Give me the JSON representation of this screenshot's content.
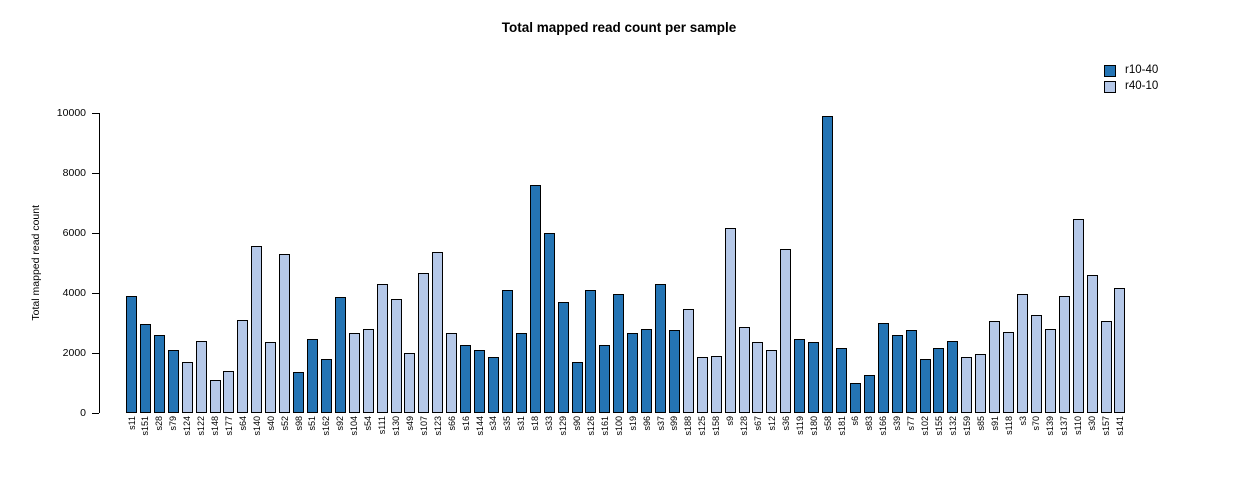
{
  "title": "Total mapped read count per sample",
  "y_axis": {
    "label": "Total mapped read count"
  },
  "chart_data": {
    "type": "bar",
    "title": "Total mapped read count per sample",
    "xlabel": "",
    "ylabel": "Total mapped read count",
    "ylim": [
      0,
      10000
    ],
    "yticks": [
      0,
      2000,
      4000,
      6000,
      8000,
      10000
    ],
    "grid": false,
    "legend_position": "top-right",
    "groups": [
      {
        "name": "r10-40",
        "color": "#2474b4"
      },
      {
        "name": "r40-10",
        "color": "#b5c8e8"
      }
    ],
    "bars": [
      {
        "sample": "s11",
        "value": 3900,
        "group": "r10-40"
      },
      {
        "sample": "s151",
        "value": 2950,
        "group": "r10-40"
      },
      {
        "sample": "s28",
        "value": 2600,
        "group": "r10-40"
      },
      {
        "sample": "s79",
        "value": 2100,
        "group": "r10-40"
      },
      {
        "sample": "s124",
        "value": 1700,
        "group": "r40-10"
      },
      {
        "sample": "s122",
        "value": 2400,
        "group": "r40-10"
      },
      {
        "sample": "s148",
        "value": 1100,
        "group": "r40-10"
      },
      {
        "sample": "s177",
        "value": 1400,
        "group": "r40-10"
      },
      {
        "sample": "s64",
        "value": 3100,
        "group": "r40-10"
      },
      {
        "sample": "s140",
        "value": 5550,
        "group": "r40-10"
      },
      {
        "sample": "s40",
        "value": 2350,
        "group": "r40-10"
      },
      {
        "sample": "s52",
        "value": 5300,
        "group": "r40-10"
      },
      {
        "sample": "s98",
        "value": 1350,
        "group": "r10-40"
      },
      {
        "sample": "s51",
        "value": 2450,
        "group": "r10-40"
      },
      {
        "sample": "s162",
        "value": 1800,
        "group": "r10-40"
      },
      {
        "sample": "s92",
        "value": 3850,
        "group": "r10-40"
      },
      {
        "sample": "s104",
        "value": 2650,
        "group": "r40-10"
      },
      {
        "sample": "s54",
        "value": 2800,
        "group": "r40-10"
      },
      {
        "sample": "s111",
        "value": 4300,
        "group": "r40-10"
      },
      {
        "sample": "s130",
        "value": 3800,
        "group": "r40-10"
      },
      {
        "sample": "s49",
        "value": 2000,
        "group": "r40-10"
      },
      {
        "sample": "s107",
        "value": 4650,
        "group": "r40-10"
      },
      {
        "sample": "s123",
        "value": 5350,
        "group": "r40-10"
      },
      {
        "sample": "s66",
        "value": 2650,
        "group": "r40-10"
      },
      {
        "sample": "s16",
        "value": 2250,
        "group": "r10-40"
      },
      {
        "sample": "s144",
        "value": 2100,
        "group": "r10-40"
      },
      {
        "sample": "s34",
        "value": 1850,
        "group": "r10-40"
      },
      {
        "sample": "s35",
        "value": 4100,
        "group": "r10-40"
      },
      {
        "sample": "s31",
        "value": 2650,
        "group": "r10-40"
      },
      {
        "sample": "s18",
        "value": 7600,
        "group": "r10-40"
      },
      {
        "sample": "s33",
        "value": 6000,
        "group": "r10-40"
      },
      {
        "sample": "s129",
        "value": 3700,
        "group": "r10-40"
      },
      {
        "sample": "s90",
        "value": 1700,
        "group": "r10-40"
      },
      {
        "sample": "s126",
        "value": 4100,
        "group": "r10-40"
      },
      {
        "sample": "s161",
        "value": 2250,
        "group": "r10-40"
      },
      {
        "sample": "s100",
        "value": 3950,
        "group": "r10-40"
      },
      {
        "sample": "s19",
        "value": 2650,
        "group": "r10-40"
      },
      {
        "sample": "s96",
        "value": 2800,
        "group": "r10-40"
      },
      {
        "sample": "s37",
        "value": 4300,
        "group": "r10-40"
      },
      {
        "sample": "s99",
        "value": 2750,
        "group": "r10-40"
      },
      {
        "sample": "s188",
        "value": 3450,
        "group": "r40-10"
      },
      {
        "sample": "s125",
        "value": 1850,
        "group": "r40-10"
      },
      {
        "sample": "s158",
        "value": 1900,
        "group": "r40-10"
      },
      {
        "sample": "s9",
        "value": 6150,
        "group": "r40-10"
      },
      {
        "sample": "s128",
        "value": 2850,
        "group": "r40-10"
      },
      {
        "sample": "s67",
        "value": 2350,
        "group": "r40-10"
      },
      {
        "sample": "s12",
        "value": 2100,
        "group": "r40-10"
      },
      {
        "sample": "s36",
        "value": 5450,
        "group": "r40-10"
      },
      {
        "sample": "s119",
        "value": 2450,
        "group": "r10-40"
      },
      {
        "sample": "s180",
        "value": 2350,
        "group": "r10-40"
      },
      {
        "sample": "s58",
        "value": 9900,
        "group": "r10-40"
      },
      {
        "sample": "s181",
        "value": 2150,
        "group": "r10-40"
      },
      {
        "sample": "s6",
        "value": 1000,
        "group": "r10-40"
      },
      {
        "sample": "s83",
        "value": 1250,
        "group": "r10-40"
      },
      {
        "sample": "s166",
        "value": 3000,
        "group": "r10-40"
      },
      {
        "sample": "s39",
        "value": 2600,
        "group": "r10-40"
      },
      {
        "sample": "s77",
        "value": 2750,
        "group": "r10-40"
      },
      {
        "sample": "s102",
        "value": 1800,
        "group": "r10-40"
      },
      {
        "sample": "s155",
        "value": 2150,
        "group": "r10-40"
      },
      {
        "sample": "s132",
        "value": 2400,
        "group": "r10-40"
      },
      {
        "sample": "s159",
        "value": 1850,
        "group": "r40-10"
      },
      {
        "sample": "s85",
        "value": 1950,
        "group": "r40-10"
      },
      {
        "sample": "s91",
        "value": 3050,
        "group": "r40-10"
      },
      {
        "sample": "s118",
        "value": 2700,
        "group": "r40-10"
      },
      {
        "sample": "s3",
        "value": 3950,
        "group": "r40-10"
      },
      {
        "sample": "s70",
        "value": 3250,
        "group": "r40-10"
      },
      {
        "sample": "s139",
        "value": 2800,
        "group": "r40-10"
      },
      {
        "sample": "s137",
        "value": 3900,
        "group": "r40-10"
      },
      {
        "sample": "s110",
        "value": 6450,
        "group": "r40-10"
      },
      {
        "sample": "s30",
        "value": 4600,
        "group": "r40-10"
      },
      {
        "sample": "s157",
        "value": 3050,
        "group": "r40-10"
      },
      {
        "sample": "s141",
        "value": 4150,
        "group": "r40-10"
      }
    ]
  }
}
